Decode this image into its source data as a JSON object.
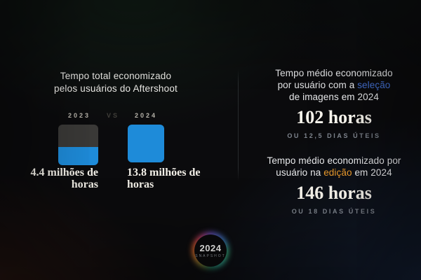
{
  "colors": {
    "accent_blue_bar": "#1e8bd9",
    "bar_gray": "#3a3937",
    "highlight_blue": "#4673d6",
    "highlight_orange": "#e9992c",
    "background_base": "#0b0b0d"
  },
  "left": {
    "heading_line1": "Tempo total economizado",
    "heading_line2": "pelos usuários do Aftershoot",
    "year_left": "2023",
    "vs_label": "VS",
    "year_right": "2024",
    "bar2023_caption_line1": "4.4 milhões de",
    "bar2023_caption_line2": "horas",
    "bar2024_caption_line1": "13.8 milhões de",
    "bar2024_caption_line2": "horas"
  },
  "right": {
    "block1": {
      "heading_line1": "Tempo médio economizado",
      "heading_line2_prefix": "por usuário com a ",
      "heading_line2_highlight": "seleção",
      "heading_line3": "de imagens em 2024",
      "value": "102 horas",
      "subtext": "OU 12,5 DIAS ÚTEIS"
    },
    "block2": {
      "heading_line1": "Tempo médio economizado por",
      "heading_line2_prefix": "usuário na ",
      "heading_line2_highlight": "edição",
      "heading_line2_suffix": " em 2024",
      "value": "146 horas",
      "subtext": "OU 18 DIAS ÚTEIS"
    }
  },
  "logo": {
    "year": "2024",
    "label": "SNAPSHOT"
  },
  "chart_data": {
    "type": "bar",
    "title": "Tempo total economizado pelos usuários do Aftershoot",
    "categories": [
      "2023",
      "2024"
    ],
    "values": [
      4.4,
      13.8
    ],
    "unit": "milhões de horas",
    "value_labels": [
      "4.4 milhões de horas",
      "13.8 milhões de horas"
    ],
    "legend_position": "none",
    "grid": false,
    "notes": "2023 square partially filled blue vs 2024 square fully blue; companion stats: seleção 102 horas (12,5 dias úteis), edição 146 horas (18 dias úteis)"
  }
}
